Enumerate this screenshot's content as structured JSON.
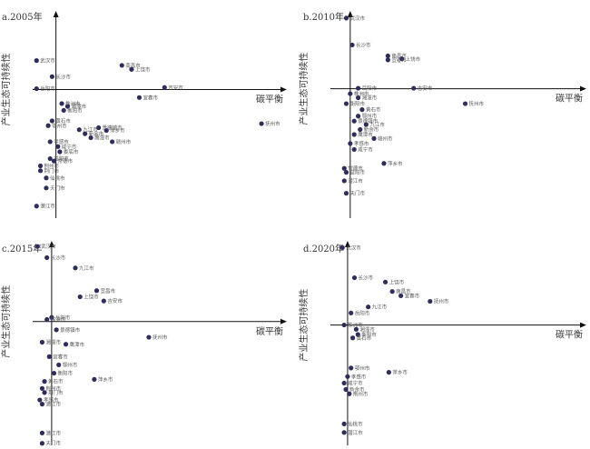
{
  "chart_data": [
    {
      "type": "scatter",
      "title": "a.2005年",
      "xlabel": "碳平衡",
      "ylabel": "产业生态可持续性",
      "xlim": [
        -0.6,
        6.0
      ],
      "ylim": [
        -3.2,
        2.0
      ],
      "grid": false,
      "points": [
        {
          "x": -0.5,
          "y": 0.72,
          "label": "武汉市"
        },
        {
          "x": -0.1,
          "y": 0.32,
          "label": "长沙市"
        },
        {
          "x": 1.7,
          "y": 0.6,
          "label": "南昌市"
        },
        {
          "x": 1.95,
          "y": 0.5,
          "label": "上饶市"
        },
        {
          "x": 2.8,
          "y": 0.05,
          "label": "吉安市"
        },
        {
          "x": -0.5,
          "y": 0.02,
          "label": "岳阳市"
        },
        {
          "x": 2.15,
          "y": -0.2,
          "label": "宜春市"
        },
        {
          "x": 5.3,
          "y": -0.85,
          "label": "抚州市"
        },
        {
          "x": 0.15,
          "y": -0.35,
          "label": "株洲市"
        },
        {
          "x": 0.3,
          "y": -0.42,
          "label": "湘潭市"
        },
        {
          "x": 0.2,
          "y": -0.52,
          "label": "衡阳市"
        },
        {
          "x": -0.1,
          "y": -0.78,
          "label": "黄石市"
        },
        {
          "x": -0.2,
          "y": -0.9,
          "label": "鄂州市"
        },
        {
          "x": 1.1,
          "y": -0.95,
          "label": "景德镇市"
        },
        {
          "x": 0.6,
          "y": -1.0,
          "label": "九江市"
        },
        {
          "x": 1.3,
          "y": -1.02,
          "label": "萍乡市"
        },
        {
          "x": 0.75,
          "y": -1.1,
          "label": "新余市"
        },
        {
          "x": 0.9,
          "y": -1.2,
          "label": "鹰潭市"
        },
        {
          "x": 1.45,
          "y": -1.3,
          "label": "赣州市"
        },
        {
          "x": -0.15,
          "y": -1.3,
          "label": "孝感市"
        },
        {
          "x": 0.05,
          "y": -1.42,
          "label": "咸宁市"
        },
        {
          "x": 0.1,
          "y": -1.55,
          "label": "娄底市"
        },
        {
          "x": -0.15,
          "y": -1.72,
          "label": "益阳市"
        },
        {
          "x": -0.05,
          "y": -1.78,
          "label": "常德市"
        },
        {
          "x": -0.4,
          "y": -1.9,
          "label": "荆州市"
        },
        {
          "x": -0.4,
          "y": -2.02,
          "label": "荆门市"
        },
        {
          "x": -0.25,
          "y": -2.2,
          "label": "仙桃市"
        },
        {
          "x": -0.25,
          "y": -2.45,
          "label": "天门市"
        },
        {
          "x": -0.5,
          "y": -2.9,
          "label": "潜江市"
        }
      ]
    },
    {
      "type": "scatter",
      "title": "b.2010年",
      "xlabel": "碳平衡",
      "ylabel": "产业生态可持续性",
      "xlim": [
        -0.5,
        6.0
      ],
      "ylim": [
        -2.6,
        1.6
      ],
      "grid": false,
      "points": [
        {
          "x": -0.1,
          "y": 1.42,
          "label": "武汉市"
        },
        {
          "x": 0.05,
          "y": 0.88,
          "label": "长沙市"
        },
        {
          "x": 0.95,
          "y": 0.66,
          "label": "南昌市"
        },
        {
          "x": 1.3,
          "y": 0.6,
          "label": "上饶市"
        },
        {
          "x": 0.95,
          "y": 0.58,
          "label": "宜春市"
        },
        {
          "x": 0.2,
          "y": 0.01,
          "label": "岳阳市"
        },
        {
          "x": 1.6,
          "y": 0.01,
          "label": "吉安市"
        },
        {
          "x": 0.0,
          "y": -0.1,
          "label": "株洲市"
        },
        {
          "x": 0.2,
          "y": -0.18,
          "label": "湘潭市"
        },
        {
          "x": 2.9,
          "y": -0.3,
          "label": "抚州市"
        },
        {
          "x": -0.1,
          "y": -0.3,
          "label": "衡阳市"
        },
        {
          "x": 0.3,
          "y": -0.42,
          "label": "黄石市"
        },
        {
          "x": 0.2,
          "y": -0.55,
          "label": "鄂州市"
        },
        {
          "x": 0.1,
          "y": -0.65,
          "label": "景德镇市"
        },
        {
          "x": 0.4,
          "y": -0.72,
          "label": "九江市"
        },
        {
          "x": 0.25,
          "y": -0.82,
          "label": "新余市"
        },
        {
          "x": 0.1,
          "y": -0.92,
          "label": "鹰潭市"
        },
        {
          "x": 0.6,
          "y": -1.0,
          "label": "赣州市"
        },
        {
          "x": 0.0,
          "y": -1.1,
          "label": "孝感市"
        },
        {
          "x": 0.1,
          "y": -1.22,
          "label": "咸宁市"
        },
        {
          "x": 0.85,
          "y": -1.5,
          "label": "萍乡市"
        },
        {
          "x": -0.15,
          "y": -1.6,
          "label": "常德市"
        },
        {
          "x": -0.1,
          "y": -1.68,
          "label": "益阳市"
        },
        {
          "x": -0.15,
          "y": -1.85,
          "label": "潜江市"
        },
        {
          "x": -0.1,
          "y": -2.1,
          "label": "天门市"
        }
      ]
    },
    {
      "type": "scatter",
      "title": "c.2015年",
      "xlabel": "碳平衡",
      "ylabel": "产业生态可持续性",
      "xlim": [
        -0.4,
        5.0
      ],
      "ylim": [
        -3.0,
        2.0
      ],
      "grid": false,
      "points": [
        {
          "x": -0.3,
          "y": 1.82,
          "label": "武汉市"
        },
        {
          "x": -0.1,
          "y": 1.55,
          "label": "长沙市"
        },
        {
          "x": 0.5,
          "y": 1.3,
          "label": "九江市"
        },
        {
          "x": 0.95,
          "y": 0.75,
          "label": "宜昌市"
        },
        {
          "x": 0.6,
          "y": 0.6,
          "label": "上饶市"
        },
        {
          "x": 1.1,
          "y": 0.5,
          "label": "吉安市"
        },
        {
          "x": 0.0,
          "y": 0.1,
          "label": "岳阳市"
        },
        {
          "x": -0.1,
          "y": 0.05,
          "label": "株洲市"
        },
        {
          "x": 2.05,
          "y": -0.38,
          "label": "抚州市"
        },
        {
          "x": 0.1,
          "y": -0.2,
          "label": "景德镇市"
        },
        {
          "x": -0.2,
          "y": -0.5,
          "label": "湘潭市"
        },
        {
          "x": 0.3,
          "y": -0.55,
          "label": "鹰潭市"
        },
        {
          "x": -0.05,
          "y": -0.85,
          "label": "宜春市"
        },
        {
          "x": 0.15,
          "y": -1.05,
          "label": "鄂州市"
        },
        {
          "x": 0.05,
          "y": -1.25,
          "label": "衡阳市"
        },
        {
          "x": 0.9,
          "y": -1.4,
          "label": "萍乡市"
        },
        {
          "x": -0.15,
          "y": -1.45,
          "label": "黄石市"
        },
        {
          "x": -0.2,
          "y": -1.62,
          "label": "荆州市"
        },
        {
          "x": -0.15,
          "y": -1.72,
          "label": "荆门市"
        },
        {
          "x": -0.25,
          "y": -1.9,
          "label": "孝感市"
        },
        {
          "x": -0.2,
          "y": -2.0,
          "label": "潜江市"
        },
        {
          "x": -0.2,
          "y": -2.7,
          "label": "潜江市"
        },
        {
          "x": -0.2,
          "y": -2.95,
          "label": "天门市"
        }
      ]
    },
    {
      "type": "scatter",
      "title": "d.2020年",
      "xlabel": "碳平衡",
      "ylabel": "产业生态可持续性",
      "xlim": [
        -0.5,
        7.0
      ],
      "ylim": [
        -2.8,
        2.0
      ],
      "grid": false,
      "points": [
        {
          "x": -0.15,
          "y": 1.8,
          "label": "武汉市"
        },
        {
          "x": 0.2,
          "y": 1.1,
          "label": "长沙市"
        },
        {
          "x": 1.1,
          "y": 1.0,
          "label": "上饶市"
        },
        {
          "x": 1.3,
          "y": 0.78,
          "label": "南昌市"
        },
        {
          "x": 1.55,
          "y": 0.68,
          "label": "宜春市"
        },
        {
          "x": 2.4,
          "y": 0.55,
          "label": "抚州市"
        },
        {
          "x": 0.6,
          "y": 0.42,
          "label": "九江市"
        },
        {
          "x": 0.1,
          "y": 0.28,
          "label": "岳阳市"
        },
        {
          "x": -0.1,
          "y": 0.0,
          "label": "株洲市"
        },
        {
          "x": 0.25,
          "y": -0.1,
          "label": "湘潭市"
        },
        {
          "x": 0.3,
          "y": -0.22,
          "label": "衡阳市"
        },
        {
          "x": 0.15,
          "y": -0.3,
          "label": "黄石市"
        },
        {
          "x": 0.1,
          "y": -1.0,
          "label": "鄂州市"
        },
        {
          "x": 1.2,
          "y": -1.1,
          "label": "萍乡市"
        },
        {
          "x": 0.0,
          "y": -1.2,
          "label": "孝感市"
        },
        {
          "x": -0.1,
          "y": -1.35,
          "label": "咸宁市"
        },
        {
          "x": -0.05,
          "y": -1.5,
          "label": "新余市"
        },
        {
          "x": 0.05,
          "y": -1.6,
          "label": "荆州市"
        },
        {
          "x": -0.1,
          "y": -2.3,
          "label": "仙桃市"
        },
        {
          "x": -0.1,
          "y": -2.5,
          "label": "潜江市"
        }
      ]
    }
  ]
}
